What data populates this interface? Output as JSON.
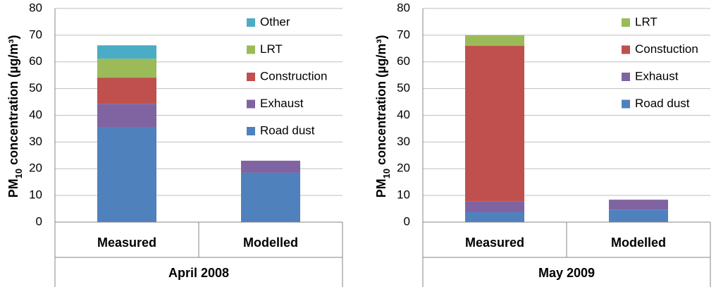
{
  "chart_data": [
    {
      "type": "bar",
      "stacked": true,
      "ylabel": [
        "PM",
        "10",
        " concentration (µg/m³)"
      ],
      "categories": [
        "Measured",
        "Modelled"
      ],
      "group_label": "April 2008",
      "ylim": [
        0,
        80
      ],
      "yticks": [
        0,
        10,
        20,
        30,
        40,
        50,
        60,
        70,
        80
      ],
      "grid": true,
      "series": [
        {
          "name": "Road dust",
          "color": "#4f81bd",
          "values": [
            35.5,
            18.5
          ]
        },
        {
          "name": "Exhaust",
          "color": "#8064a2",
          "values": [
            8.8,
            4.5
          ]
        },
        {
          "name": "Construction",
          "color": "#c0504d",
          "values": [
            9.8,
            0
          ]
        },
        {
          "name": "LRT",
          "color": "#9bbb59",
          "values": [
            7.1,
            0
          ]
        },
        {
          "name": "Other",
          "color": "#4bacc6",
          "values": [
            5.0,
            0
          ]
        }
      ]
    },
    {
      "type": "bar",
      "stacked": true,
      "ylabel": [
        "PM",
        "10",
        " concentration (µg/m³)"
      ],
      "categories": [
        "Measured",
        "Modelled"
      ],
      "group_label": "May 2009",
      "ylim": [
        0,
        80
      ],
      "yticks": [
        0,
        10,
        20,
        30,
        40,
        50,
        60,
        70,
        80
      ],
      "grid": true,
      "series": [
        {
          "name": "Road dust",
          "color": "#4f81bd",
          "values": [
            3.7,
            4.7
          ]
        },
        {
          "name": "Exhaust",
          "color": "#8064a2",
          "values": [
            4.0,
            3.7
          ]
        },
        {
          "name": "Constuction",
          "color": "#c0504d",
          "values": [
            58.3,
            0
          ]
        },
        {
          "name": "LRT",
          "color": "#9bbb59",
          "values": [
            4.0,
            0
          ]
        }
      ]
    }
  ]
}
